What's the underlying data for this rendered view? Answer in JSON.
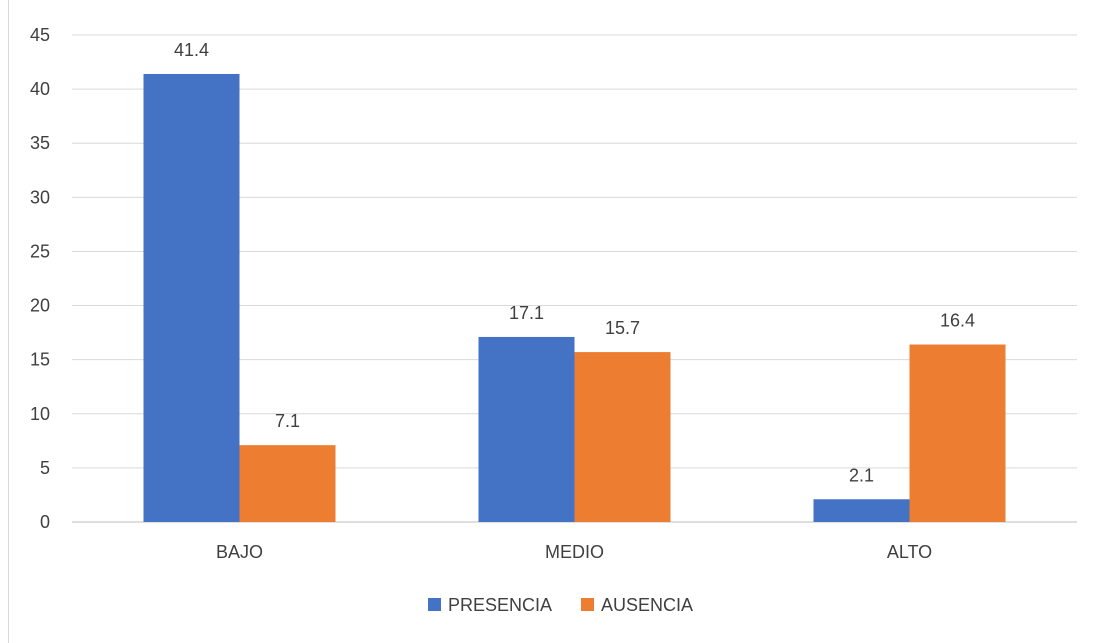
{
  "chart_data": {
    "type": "bar",
    "categories": [
      "BAJO",
      "MEDIO",
      "ALTO"
    ],
    "series": [
      {
        "name": "PRESENCIA",
        "values": [
          41.4,
          17.1,
          2.1
        ],
        "color": "#4472C4"
      },
      {
        "name": "AUSENCIA",
        "values": [
          7.1,
          15.7,
          16.4
        ],
        "color": "#ED7D31"
      }
    ],
    "data_labels": [
      "41.4",
      "17.1",
      "2.1",
      "7.1",
      "15.7",
      "16.4"
    ],
    "y_ticks": [
      "0",
      "5",
      "10",
      "15",
      "20",
      "25",
      "30",
      "35",
      "40",
      "45"
    ],
    "ylim": [
      0,
      45
    ],
    "title": "",
    "xlabel": "",
    "ylabel": "",
    "grid": true,
    "legend_position": "bottom",
    "gridline_color": "#d9d9d9",
    "axis_color": "#bfbfbf"
  }
}
